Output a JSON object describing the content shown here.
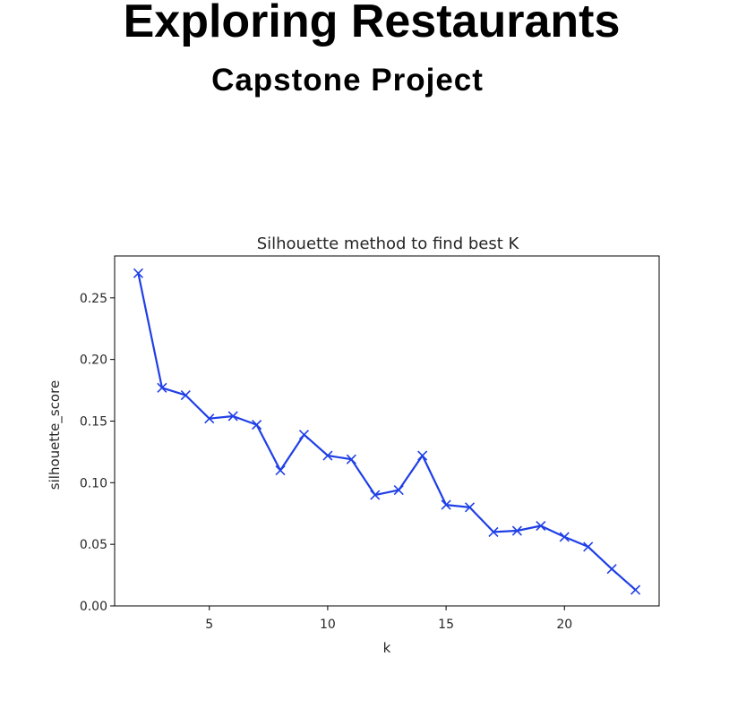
{
  "header": {
    "title": "Exploring Restaurants",
    "subtitle": "Capstone Project"
  },
  "chart_data": {
    "type": "line",
    "title": "Silhouette method to find best K",
    "xlabel": "k",
    "ylabel": "silhouette_score",
    "x": [
      2,
      3,
      4,
      5,
      6,
      7,
      8,
      9,
      10,
      11,
      12,
      13,
      14,
      15,
      16,
      17,
      18,
      19,
      20,
      21,
      22,
      23
    ],
    "series": [
      {
        "values": [
          0.27,
          0.177,
          0.171,
          0.152,
          0.154,
          0.147,
          0.11,
          0.139,
          0.122,
          0.119,
          0.09,
          0.094,
          0.122,
          0.082,
          0.08,
          0.06,
          0.061,
          0.065,
          0.056,
          0.048,
          0.03,
          0.013
        ],
        "color": "#1f3fe6",
        "marker": "x"
      }
    ],
    "xlim": [
      1.0,
      24.0
    ],
    "ylim": [
      0.0,
      0.284
    ],
    "xticks": [
      5,
      10,
      15,
      20
    ],
    "yticks": [
      0.0,
      0.05,
      0.1,
      0.15,
      0.2,
      0.25
    ],
    "xtick_labels": [
      "5",
      "10",
      "15",
      "20"
    ],
    "ytick_labels": [
      "0.00",
      "0.05",
      "0.10",
      "0.15",
      "0.20",
      "0.25"
    ],
    "grid": false,
    "legend": "none"
  }
}
